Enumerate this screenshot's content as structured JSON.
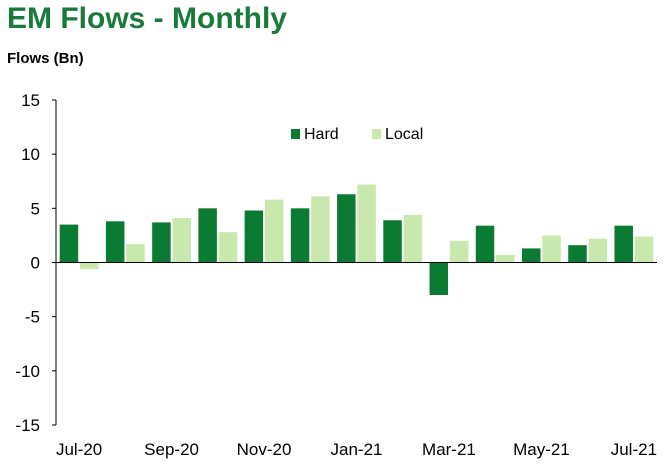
{
  "chart_data": {
    "type": "bar",
    "title": "EM Flows - Monthly",
    "ylabel": "Flows (Bn)",
    "xlabel": "",
    "ylim": [
      -15,
      15
    ],
    "yticks": [
      15,
      10,
      5,
      0,
      -5,
      -10,
      -15
    ],
    "categories": [
      "Jul-20",
      "Aug-20",
      "Sep-20",
      "Oct-20",
      "Nov-20",
      "Dec-20",
      "Jan-21",
      "Feb-21",
      "Mar-21",
      "Apr-21",
      "May-21",
      "Jun-21",
      "Jul-21"
    ],
    "xtick_labels": [
      "Jul-20",
      "Sep-20",
      "Nov-20",
      "Jan-21",
      "Mar-21",
      "May-21",
      "Jul-21"
    ],
    "legend": "top-center",
    "grid": false,
    "series": [
      {
        "name": "Hard",
        "color": "#0b7a33",
        "values": [
          3.5,
          3.8,
          3.7,
          5.0,
          4.8,
          5.0,
          6.3,
          3.9,
          -3.0,
          3.4,
          1.3,
          1.6,
          3.4
        ]
      },
      {
        "name": "Local",
        "color": "#c9e8ae",
        "values": [
          -0.6,
          1.7,
          4.1,
          2.8,
          5.8,
          6.1,
          7.2,
          4.4,
          2.0,
          0.7,
          2.5,
          2.2,
          2.4
        ]
      }
    ]
  }
}
